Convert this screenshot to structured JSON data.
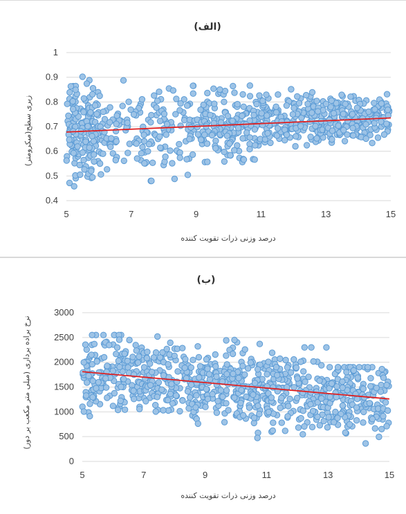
{
  "chart_data": [
    {
      "type": "scatter",
      "title": "(الف)",
      "xlabel": "درصد وزنی ذرات تقویت کننده",
      "ylabel": "زبری سطح(میکرومتر)",
      "xlim": [
        5,
        15
      ],
      "ylim": [
        0.4,
        1
      ],
      "x_ticks": [
        "5",
        "7",
        "9",
        "11",
        "13",
        "15"
      ],
      "y_ticks": [
        "0.4",
        "0.5",
        "0.6",
        "0.7",
        "0.8",
        "0.9",
        "1"
      ],
      "trendline": {
        "x": [
          5,
          15
        ],
        "y": [
          0.678,
          0.735
        ]
      },
      "point_density": [
        {
          "x_range": [
            5,
            6
          ],
          "y_range": [
            0.44,
            0.92
          ]
        },
        {
          "x_range": [
            6,
            9
          ],
          "y_range": [
            0.48,
            0.93
          ]
        },
        {
          "x_range": [
            9,
            11
          ],
          "y_range": [
            0.55,
            0.9
          ]
        },
        {
          "x_range": [
            11,
            13
          ],
          "y_range": [
            0.62,
            0.89
          ]
        },
        {
          "x_range": [
            13,
            15
          ],
          "y_range": [
            0.62,
            0.87
          ]
        }
      ],
      "grid": "horizontal",
      "marker_color": "#9dc3e6",
      "marker_edge": "#5b9bd5",
      "trend_color": "#e02020"
    },
    {
      "type": "scatter",
      "title": "(ب)",
      "xlabel": "درصد وزنی ذرات تقویت کننده",
      "ylabel": "نرخ براده برداری (میلی متر مکعب بر دور)",
      "xlim": [
        5,
        15
      ],
      "ylim": [
        0,
        3000
      ],
      "x_ticks": [
        "5",
        "7",
        "9",
        "11",
        "13",
        "15"
      ],
      "y_ticks": [
        "0",
        "500",
        "1000",
        "1500",
        "2000",
        "2500",
        "3000"
      ],
      "trendline": {
        "x": [
          5,
          15
        ],
        "y": [
          1810,
          1260
        ]
      },
      "point_density": [
        {
          "x_range": [
            5,
            7
          ],
          "y_range": [
            400,
            2550
          ]
        },
        {
          "x_range": [
            7,
            9
          ],
          "y_range": [
            550,
            2600
          ]
        },
        {
          "x_range": [
            9,
            11
          ],
          "y_range": [
            400,
            2450
          ]
        },
        {
          "x_range": [
            11,
            13
          ],
          "y_range": [
            250,
            2300
          ]
        },
        {
          "x_range": [
            13,
            15
          ],
          "y_range": [
            30,
            1900
          ]
        }
      ],
      "grid": "horizontal",
      "marker_color": "#9dc3e6",
      "marker_edge": "#5b9bd5",
      "trend_color": "#e02020"
    }
  ]
}
